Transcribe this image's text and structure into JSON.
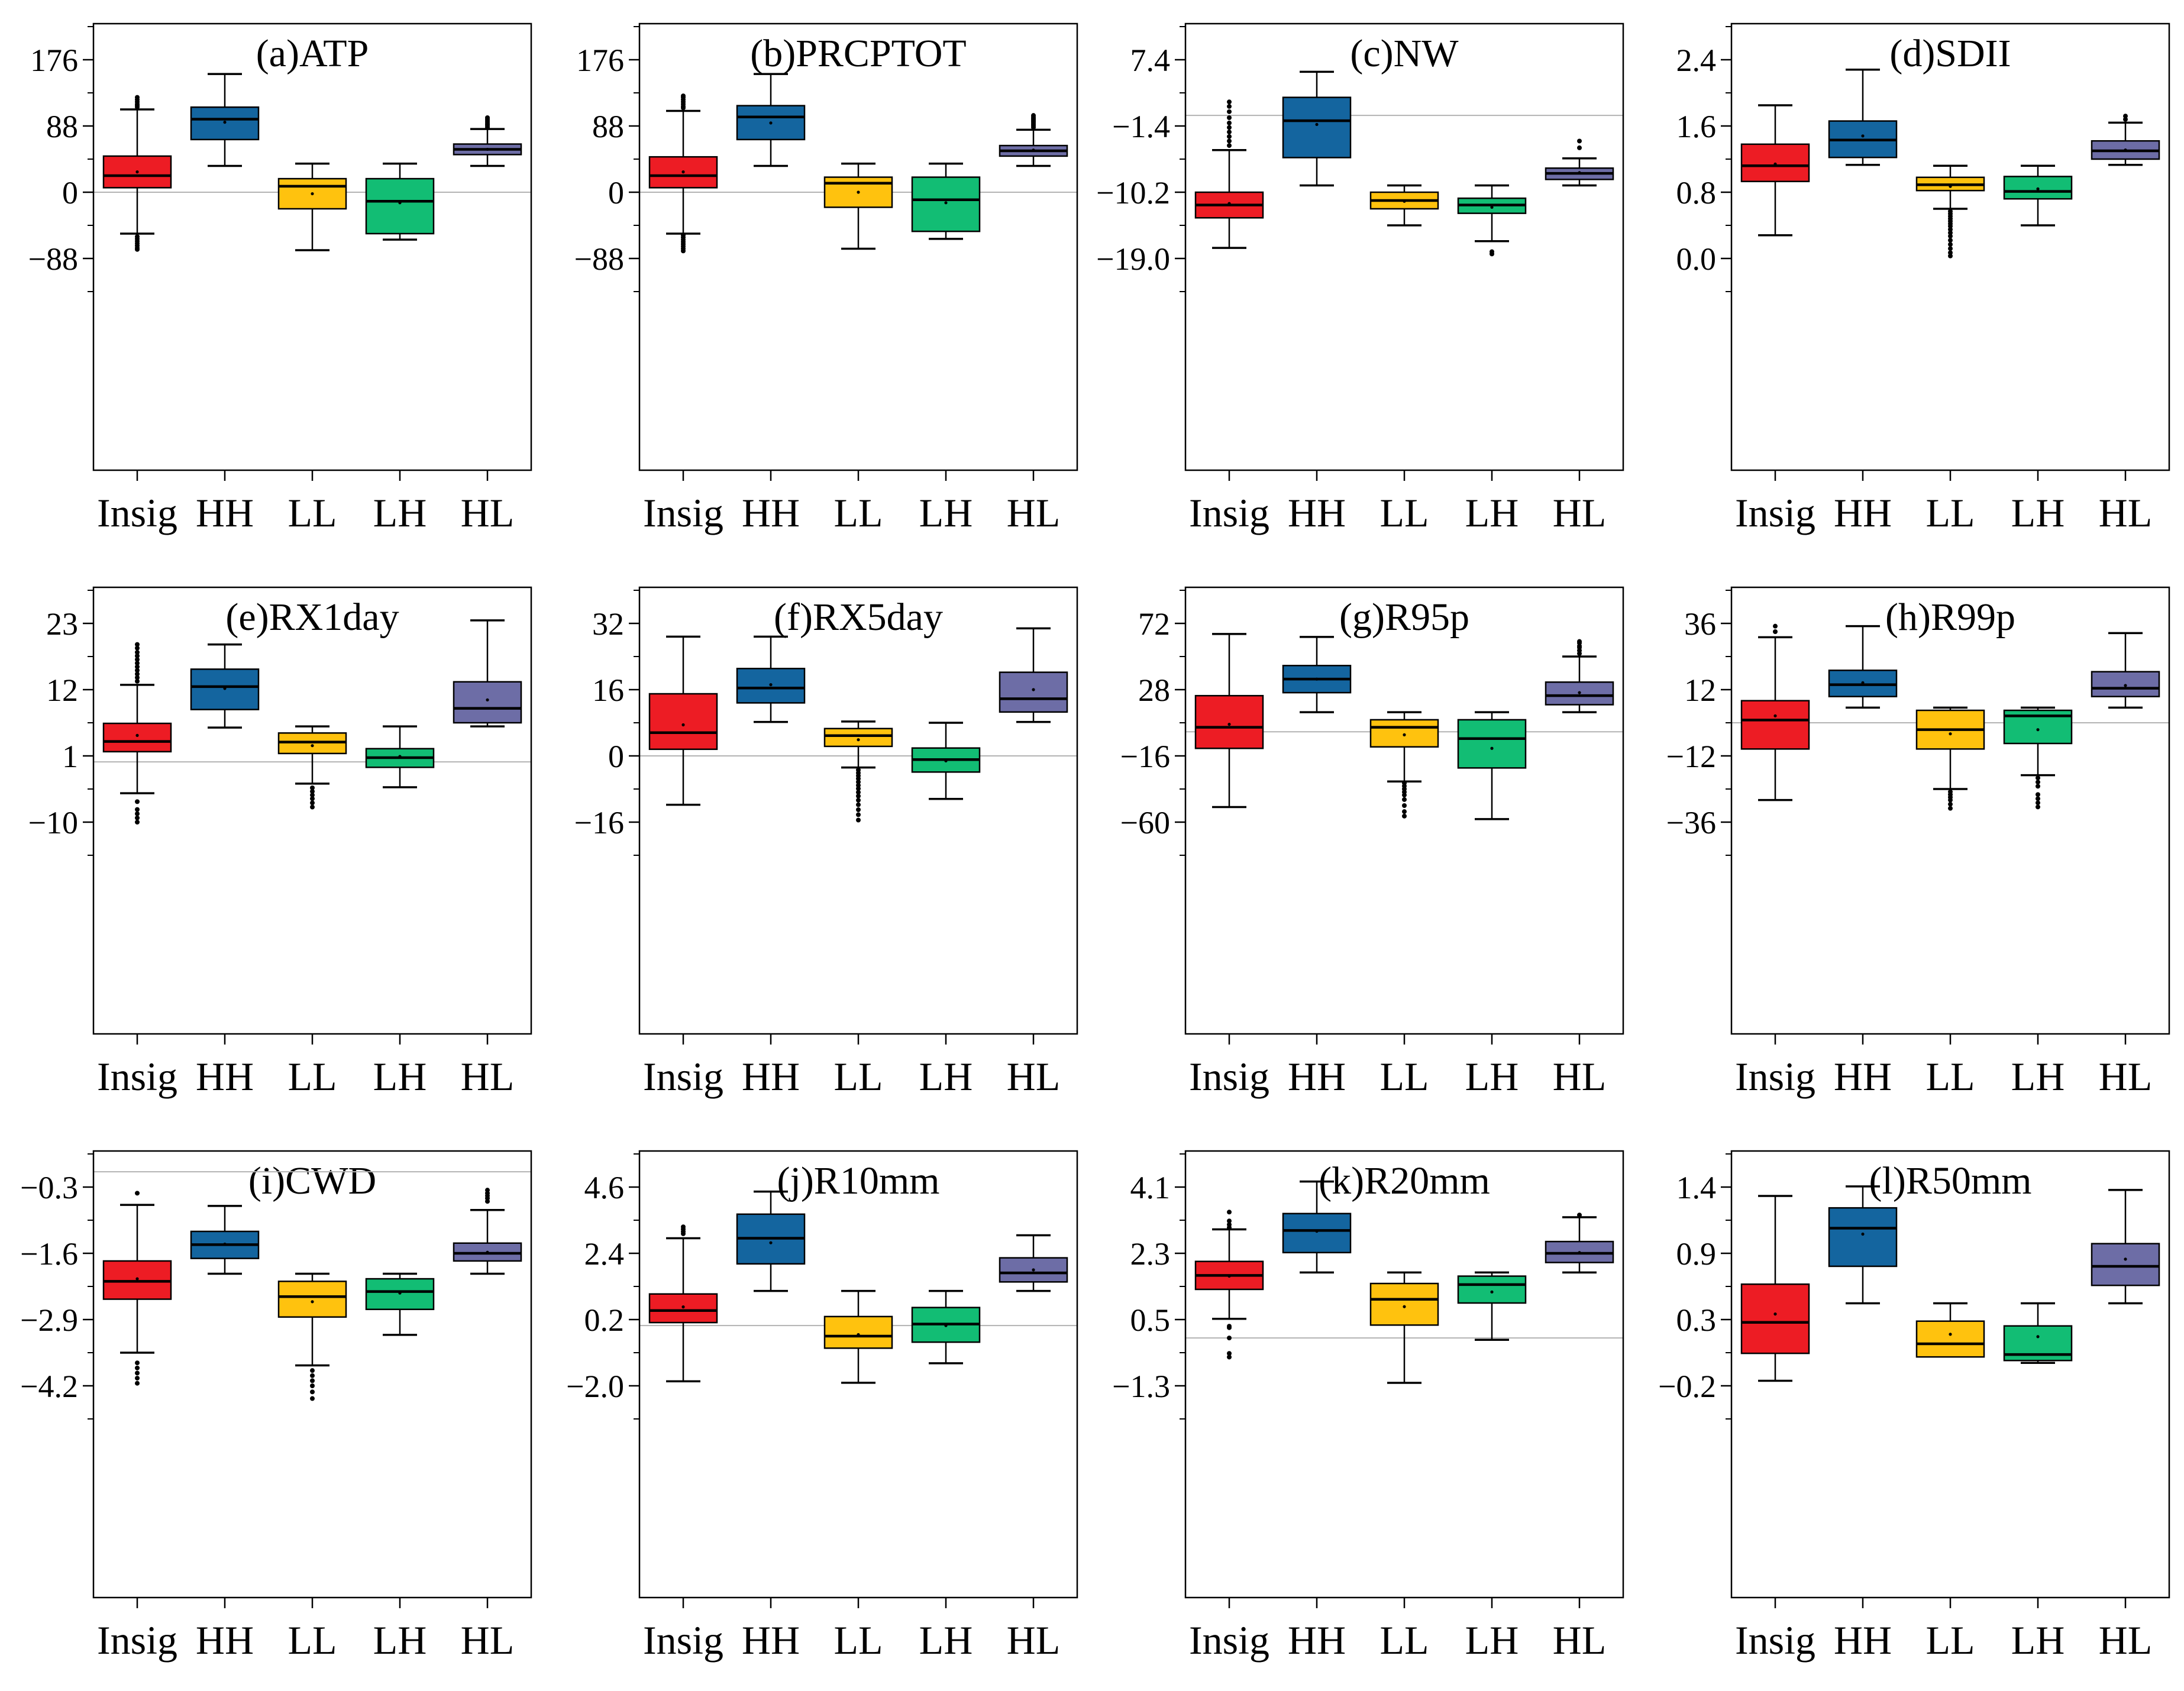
{
  "figure": {
    "categories": [
      "Insig",
      "HH",
      "LL",
      "LH",
      "HL"
    ],
    "colors": {
      "Insig": "#ed1c24",
      "HH": "#14659f",
      "LL": "#ffc20e",
      "LH": "#12bd74",
      "HL": "#6d6da6"
    },
    "gridline_color": "#b3b3b3",
    "axis_color": "#000000"
  },
  "chart_data": [
    {
      "type": "box",
      "title": "(a)ATP",
      "tick_values": [
        176,
        88,
        0,
        -88
      ],
      "tick_labels": [
        "176",
        "88",
        "0",
        "−88"
      ],
      "refline": 0,
      "boxes": [
        {
          "cat": "Insig",
          "whislo": -55,
          "q1": 6,
          "med": 22,
          "q3": 48,
          "whishi": 110,
          "mean": 27,
          "outliers": [
            113,
            115,
            117,
            120,
            123,
            126,
            -59,
            -62,
            -65,
            -68,
            -71,
            -74,
            -76
          ]
        },
        {
          "cat": "HH",
          "whislo": 35,
          "q1": 70,
          "med": 97,
          "q3": 113,
          "whishi": 157,
          "mean": 93,
          "outliers": []
        },
        {
          "cat": "LL",
          "whislo": -77,
          "q1": -22,
          "med": 8,
          "q3": 18,
          "whishi": 38,
          "mean": -2,
          "outliers": []
        },
        {
          "cat": "LH",
          "whislo": -63,
          "q1": -55,
          "med": -12,
          "q3": 18,
          "whishi": 38,
          "mean": -14,
          "outliers": []
        },
        {
          "cat": "HL",
          "whislo": 35,
          "q1": 50,
          "med": 57,
          "q3": 64,
          "whishi": 84,
          "mean": 57,
          "outliers": [
            86,
            88,
            90,
            91,
            93,
            95,
            97,
            99
          ]
        }
      ]
    },
    {
      "type": "box",
      "title": "(b)PRCPTOT",
      "tick_values": [
        176,
        88,
        0,
        -88
      ],
      "tick_labels": [
        "176",
        "88",
        "0",
        "−88"
      ],
      "refline": 0,
      "boxes": [
        {
          "cat": "Insig",
          "whislo": -55,
          "q1": 6,
          "med": 22,
          "q3": 47,
          "whishi": 108,
          "mean": 27,
          "outliers": [
            112,
            114,
            117,
            120,
            123,
            126,
            128,
            -57,
            -60,
            -63,
            -66,
            -69,
            -72,
            -75,
            -78
          ]
        },
        {
          "cat": "HH",
          "whislo": 35,
          "q1": 70,
          "med": 100,
          "q3": 115,
          "whishi": 157,
          "mean": 92,
          "outliers": []
        },
        {
          "cat": "LL",
          "whislo": -75,
          "q1": -20,
          "med": 12,
          "q3": 20,
          "whishi": 38,
          "mean": 0,
          "outliers": []
        },
        {
          "cat": "LH",
          "whislo": -62,
          "q1": -52,
          "med": -10,
          "q3": 20,
          "whishi": 38,
          "mean": -14,
          "outliers": []
        },
        {
          "cat": "HL",
          "whislo": 35,
          "q1": 48,
          "med": 55,
          "q3": 62,
          "whishi": 83,
          "mean": 56,
          "outliers": [
            86,
            88,
            90,
            92,
            94,
            96,
            98,
            100,
            102
          ]
        }
      ]
    },
    {
      "type": "box",
      "title": "(c)NW",
      "tick_values": [
        7.4,
        -1.4,
        -10.2,
        -19.0
      ],
      "tick_labels": [
        "7.4",
        "−1.4",
        "−10.2",
        "−19.0"
      ],
      "refline": 0,
      "boxes": [
        {
          "cat": "Insig",
          "whislo": -17.6,
          "q1": -13.6,
          "med": -11.9,
          "q3": -10.2,
          "whishi": -4.6,
          "mean": -11.7,
          "outliers": [
            -4.0,
            -3.4,
            -2.8,
            -2.2,
            -1.6,
            -1.0,
            -0.3,
            0.5,
            1.2,
            1.8
          ]
        },
        {
          "cat": "HH",
          "whislo": -9.3,
          "q1": -5.6,
          "med": -0.7,
          "q3": 2.4,
          "whishi": 5.8,
          "mean": -1.2,
          "outliers": []
        },
        {
          "cat": "LL",
          "whislo": -14.6,
          "q1": -12.4,
          "med": -11.3,
          "q3": -10.2,
          "whishi": -9.3,
          "mean": -11.4,
          "outliers": []
        },
        {
          "cat": "LH",
          "whislo": -16.7,
          "q1": -13.0,
          "med": -11.9,
          "q3": -11.0,
          "whishi": -9.3,
          "mean": -12.2,
          "outliers": [
            -18.1,
            -18.4
          ]
        },
        {
          "cat": "HL",
          "whislo": -9.3,
          "q1": -8.5,
          "med": -7.7,
          "q3": -7.0,
          "whishi": -5.7,
          "mean": -7.6,
          "outliers": [
            -4.3,
            -3.4
          ]
        }
      ]
    },
    {
      "type": "box",
      "title": "(d)SDII",
      "tick_values": [
        2.4,
        1.6,
        0.8,
        0.0
      ],
      "tick_labels": [
        "2.4",
        "1.6",
        "0.8",
        "0.0"
      ],
      "refline": null,
      "boxes": [
        {
          "cat": "Insig",
          "whislo": 0.28,
          "q1": 0.93,
          "med": 1.12,
          "q3": 1.38,
          "whishi": 1.85,
          "mean": 1.14,
          "outliers": []
        },
        {
          "cat": "HH",
          "whislo": 1.13,
          "q1": 1.22,
          "med": 1.43,
          "q3": 1.66,
          "whishi": 2.28,
          "mean": 1.48,
          "outliers": []
        },
        {
          "cat": "LL",
          "whislo": 0.6,
          "q1": 0.82,
          "med": 0.89,
          "q3": 0.98,
          "whishi": 1.12,
          "mean": 0.87,
          "outliers": [
            0.57,
            0.54,
            0.51,
            0.48,
            0.45,
            0.42,
            0.39,
            0.35,
            0.31,
            0.27,
            0.22,
            0.17,
            0.12,
            0.07,
            0.03
          ]
        },
        {
          "cat": "LH",
          "whislo": 0.4,
          "q1": 0.72,
          "med": 0.81,
          "q3": 0.99,
          "whishi": 1.12,
          "mean": 0.84,
          "outliers": []
        },
        {
          "cat": "HL",
          "whislo": 1.13,
          "q1": 1.2,
          "med": 1.3,
          "q3": 1.42,
          "whishi": 1.64,
          "mean": 1.31,
          "outliers": [
            1.68,
            1.72
          ]
        }
      ]
    },
    {
      "type": "box",
      "title": "(e)RX1day",
      "tick_values": [
        23,
        12,
        1,
        -10
      ],
      "tick_labels": [
        "23",
        "12",
        "1",
        "−10"
      ],
      "refline": 0,
      "boxes": [
        {
          "cat": "Insig",
          "whislo": -5.2,
          "q1": 1.7,
          "med": 3.4,
          "q3": 6.4,
          "whishi": 12.8,
          "mean": 4.4,
          "outliers": [
            13.4,
            14.0,
            14.6,
            15.2,
            15.8,
            16.4,
            17.0,
            17.6,
            18.2,
            18.9,
            19.5,
            -6.6,
            -7.9,
            -8.6,
            -9.3,
            -10.0
          ]
        },
        {
          "cat": "HH",
          "whislo": 5.7,
          "q1": 8.7,
          "med": 12.5,
          "q3": 15.4,
          "whishi": 19.5,
          "mean": 12.2,
          "outliers": []
        },
        {
          "cat": "LL",
          "whislo": -3.6,
          "q1": 1.4,
          "med": 3.3,
          "q3": 4.8,
          "whishi": 5.9,
          "mean": 2.7,
          "outliers": [
            -4.3,
            -4.9,
            -5.5,
            -6.1,
            -6.8,
            -7.5
          ]
        },
        {
          "cat": "LH",
          "whislo": -4.2,
          "q1": -0.9,
          "med": 0.7,
          "q3": 2.2,
          "whishi": 5.9,
          "mean": 0.9,
          "outliers": []
        },
        {
          "cat": "HL",
          "whislo": 5.9,
          "q1": 6.5,
          "med": 8.9,
          "q3": 13.3,
          "whishi": 23.5,
          "mean": 10.3,
          "outliers": []
        }
      ]
    },
    {
      "type": "box",
      "title": "(f)RX5day",
      "tick_values": [
        32,
        16,
        0,
        -16
      ],
      "tick_labels": [
        "32",
        "16",
        "0",
        "−16"
      ],
      "refline": 0,
      "boxes": [
        {
          "cat": "Insig",
          "whislo": -11.8,
          "q1": 1.6,
          "med": 5.6,
          "q3": 15.0,
          "whishi": 28.8,
          "mean": 7.5,
          "outliers": []
        },
        {
          "cat": "HH",
          "whislo": 8.2,
          "q1": 12.8,
          "med": 16.4,
          "q3": 21.1,
          "whishi": 28.8,
          "mean": 17.2,
          "outliers": []
        },
        {
          "cat": "LL",
          "whislo": -2.8,
          "q1": 2.3,
          "med": 4.9,
          "q3": 6.6,
          "whishi": 8.3,
          "mean": 3.9,
          "outliers": [
            -3.4,
            -4.1,
            -4.8,
            -5.5,
            -6.3,
            -7.1,
            -7.9,
            -8.8,
            -9.7,
            -10.7,
            -11.8,
            -13.0,
            -14.2,
            -15.5
          ]
        },
        {
          "cat": "LH",
          "whislo": -10.4,
          "q1": -3.9,
          "med": -0.9,
          "q3": 1.9,
          "whishi": 8.0,
          "mean": -1.2,
          "outliers": []
        },
        {
          "cat": "HL",
          "whislo": 8.2,
          "q1": 10.6,
          "med": 13.8,
          "q3": 20.2,
          "whishi": 30.8,
          "mean": 16.0,
          "outliers": []
        }
      ]
    },
    {
      "type": "box",
      "title": "(g)R95p",
      "tick_values": [
        72,
        28,
        -16,
        -60
      ],
      "tick_labels": [
        "72",
        "28",
        "−16",
        "−60"
      ],
      "refline": 0,
      "boxes": [
        {
          "cat": "Insig",
          "whislo": -50,
          "q1": -11,
          "med": 3,
          "q3": 24,
          "whishi": 65,
          "mean": 5,
          "outliers": []
        },
        {
          "cat": "HH",
          "whislo": 13,
          "q1": 26,
          "med": 35,
          "q3": 44,
          "whishi": 63,
          "mean": 35,
          "outliers": []
        },
        {
          "cat": "LL",
          "whislo": -33,
          "q1": -10,
          "med": 3,
          "q3": 8,
          "whishi": 13,
          "mean": -2,
          "outliers": [
            -34,
            -36,
            -38,
            -40,
            -42,
            -45,
            -49,
            -53,
            -56
          ]
        },
        {
          "cat": "LH",
          "whislo": -58,
          "q1": -24,
          "med": -4.5,
          "q3": 8,
          "whishi": 13,
          "mean": -11,
          "outliers": []
        },
        {
          "cat": "HL",
          "whislo": 13,
          "q1": 18,
          "med": 24,
          "q3": 33,
          "whishi": 50,
          "mean": 26,
          "outliers": [
            52,
            54,
            56,
            57,
            59,
            60
          ]
        }
      ]
    },
    {
      "type": "box",
      "title": "(h)R99p",
      "tick_values": [
        36,
        12,
        -12,
        -36
      ],
      "tick_labels": [
        "36",
        "12",
        "−12",
        "−36"
      ],
      "refline": 0,
      "boxes": [
        {
          "cat": "Insig",
          "whislo": -28,
          "q1": -9.5,
          "med": 1,
          "q3": 8,
          "whishi": 31,
          "mean": 2.5,
          "outliers": [
            33,
            35
          ]
        },
        {
          "cat": "HH",
          "whislo": 5.5,
          "q1": 9.5,
          "med": 13.8,
          "q3": 19,
          "whishi": 35,
          "mean": 14.5,
          "outliers": []
        },
        {
          "cat": "LL",
          "whislo": -24,
          "q1": -9.5,
          "med": -2.5,
          "q3": 4.5,
          "whishi": 5.5,
          "mean": -4,
          "outliers": [
            -25,
            -26,
            -27,
            -28,
            -29.5,
            -31
          ]
        },
        {
          "cat": "LH",
          "whislo": -19,
          "q1": -7.5,
          "med": 2.5,
          "q3": 4.5,
          "whishi": 5.5,
          "mean": -2.5,
          "outliers": [
            -20,
            -21.5,
            -23,
            -26,
            -27.5,
            -29,
            -30.5
          ]
        },
        {
          "cat": "HL",
          "whislo": 5.5,
          "q1": 9.5,
          "med": 12.5,
          "q3": 18.5,
          "whishi": 32.5,
          "mean": 13.5,
          "outliers": []
        }
      ]
    },
    {
      "type": "box",
      "title": "(i)CWD",
      "tick_values": [
        -0.3,
        -1.6,
        -2.9,
        -4.2
      ],
      "tick_labels": [
        "−0.3",
        "−1.6",
        "−2.9",
        "−4.2"
      ],
      "refline": 0,
      "boxes": [
        {
          "cat": "Insig",
          "whislo": -3.55,
          "q1": -2.5,
          "med": -2.15,
          "q3": -1.75,
          "whishi": -0.65,
          "mean": -2.1,
          "outliers": [
            -0.42,
            -3.75,
            -3.85,
            -3.95,
            -4.05,
            -4.15
          ]
        },
        {
          "cat": "HH",
          "whislo": -2.0,
          "q1": -1.7,
          "med": -1.43,
          "q3": -1.17,
          "whishi": -0.67,
          "mean": -1.42,
          "outliers": []
        },
        {
          "cat": "LL",
          "whislo": -3.8,
          "q1": -2.85,
          "med": -2.45,
          "q3": -2.15,
          "whishi": -2.0,
          "mean": -2.55,
          "outliers": [
            -3.9,
            -4.0,
            -4.1,
            -4.2,
            -4.32,
            -4.45
          ]
        },
        {
          "cat": "LH",
          "whislo": -3.2,
          "q1": -2.7,
          "med": -2.35,
          "q3": -2.1,
          "whishi": -2.0,
          "mean": -2.38,
          "outliers": []
        },
        {
          "cat": "HL",
          "whislo": -2.0,
          "q1": -1.75,
          "med": -1.6,
          "q3": -1.4,
          "whishi": -0.75,
          "mean": -1.58,
          "outliers": [
            -0.36,
            -0.42,
            -0.47,
            -0.52,
            -0.58
          ]
        }
      ]
    },
    {
      "type": "box",
      "title": "(j)R10mm",
      "tick_values": [
        4.6,
        2.4,
        0.2,
        -2.0
      ],
      "tick_labels": [
        "4.6",
        "2.4",
        "0.2",
        "−2.0"
      ],
      "refline": 0,
      "boxes": [
        {
          "cat": "Insig",
          "whislo": -1.85,
          "q1": 0.1,
          "med": 0.5,
          "q3": 1.05,
          "whishi": 2.9,
          "mean": 0.62,
          "outliers": [
            3.05,
            3.12,
            3.2,
            3.28
          ]
        },
        {
          "cat": "HH",
          "whislo": 1.15,
          "q1": 2.05,
          "med": 2.9,
          "q3": 3.7,
          "whishi": 4.45,
          "mean": 2.75,
          "outliers": []
        },
        {
          "cat": "LL",
          "whislo": -1.9,
          "q1": -0.75,
          "med": -0.35,
          "q3": 0.3,
          "whishi": 1.15,
          "mean": -0.3,
          "outliers": []
        },
        {
          "cat": "LH",
          "whislo": -1.25,
          "q1": -0.55,
          "med": 0.05,
          "q3": 0.6,
          "whishi": 1.15,
          "mean": 0.0,
          "outliers": []
        },
        {
          "cat": "HL",
          "whislo": 1.15,
          "q1": 1.45,
          "med": 1.75,
          "q3": 2.25,
          "whishi": 3.0,
          "mean": 1.85,
          "outliers": []
        }
      ]
    },
    {
      "type": "box",
      "title": "(k)R20mm",
      "tick_values": [
        4.1,
        2.3,
        0.5,
        -1.3
      ],
      "tick_labels": [
        "4.1",
        "2.3",
        "0.5",
        "−1.3"
      ],
      "refline": 0,
      "boxes": [
        {
          "cat": "Insig",
          "whislo": 0.52,
          "q1": 1.32,
          "med": 1.7,
          "q3": 2.08,
          "whishi": 2.95,
          "mean": 1.68,
          "outliers": [
            3.0,
            3.08,
            3.18,
            3.42,
            0.32,
            0.28,
            0.0,
            -0.42,
            -0.52
          ]
        },
        {
          "cat": "HH",
          "whislo": 1.78,
          "q1": 2.32,
          "med": 2.92,
          "q3": 3.38,
          "whishi": 4.25,
          "mean": 2.9,
          "outliers": []
        },
        {
          "cat": "LL",
          "whislo": -1.22,
          "q1": 0.35,
          "med": 1.05,
          "q3": 1.48,
          "whishi": 1.78,
          "mean": 0.85,
          "outliers": []
        },
        {
          "cat": "LH",
          "whislo": -0.05,
          "q1": 0.95,
          "med": 1.45,
          "q3": 1.68,
          "whishi": 1.78,
          "mean": 1.25,
          "outliers": []
        },
        {
          "cat": "HL",
          "whislo": 1.78,
          "q1": 2.05,
          "med": 2.3,
          "q3": 2.62,
          "whishi": 3.28,
          "mean": 2.32,
          "outliers": [
            3.34
          ]
        }
      ]
    },
    {
      "type": "box",
      "title": "(l)R50mm",
      "tick_values": [
        1.4444,
        0.8889,
        0.3333,
        -0.2222
      ],
      "tick_labels": [
        "1.4",
        "0.9",
        "0.3",
        "−0.2"
      ],
      "refline": null,
      "boxes": [
        {
          "cat": "Insig",
          "whislo": -0.18,
          "q1": 0.05,
          "med": 0.31,
          "q3": 0.63,
          "whishi": 1.37,
          "mean": 0.38,
          "outliers": []
        },
        {
          "cat": "HH",
          "whislo": 0.47,
          "q1": 0.78,
          "med": 1.1,
          "q3": 1.27,
          "whishi": 1.45,
          "mean": 1.05,
          "outliers": []
        },
        {
          "cat": "LL",
          "whislo": 0.02,
          "q1": 0.02,
          "med": 0.13,
          "q3": 0.32,
          "whishi": 0.47,
          "mean": 0.21,
          "outliers": []
        },
        {
          "cat": "LH",
          "whislo": -0.03,
          "q1": -0.01,
          "med": 0.04,
          "q3": 0.28,
          "whishi": 0.47,
          "mean": 0.19,
          "outliers": []
        },
        {
          "cat": "HL",
          "whislo": 0.47,
          "q1": 0.62,
          "med": 0.78,
          "q3": 0.97,
          "whishi": 1.42,
          "mean": 0.84,
          "outliers": []
        }
      ]
    }
  ]
}
